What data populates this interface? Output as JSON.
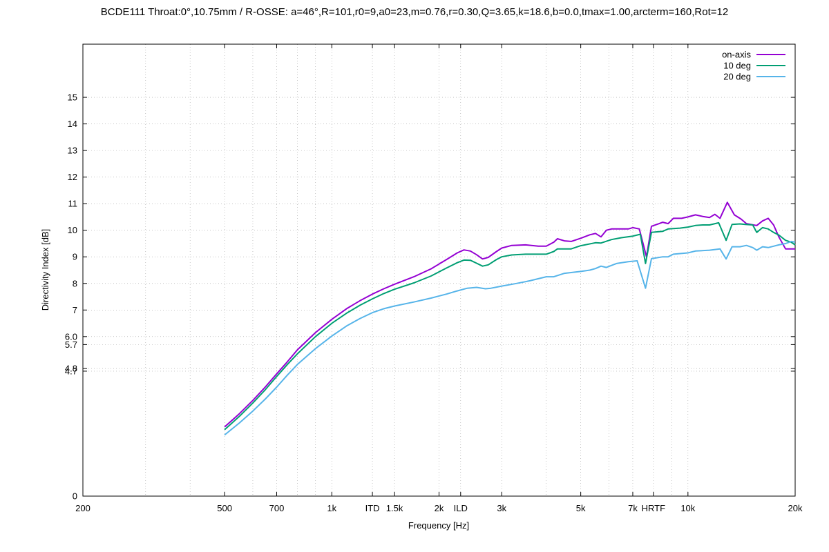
{
  "chart_data": {
    "type": "line",
    "title": "BCDE111 Throat:0°,10.75mm / R-OSSE: a=46°,R=101,r0=9,a0=23,m=0.76,r=0.30,Q=3.65,k=18.6,b=0.0,tmax=1.00,arcterm=160,Rot=12",
    "xlabel": "Frequency [Hz]",
    "ylabel": "Directivity Index [dB]",
    "xscale": "log",
    "xlim": [
      200,
      20000
    ],
    "ylim": [
      0,
      17
    ],
    "grid": true,
    "legend_position": "top-right",
    "x_ticks": [
      {
        "value": 200,
        "label": "200"
      },
      {
        "value": 500,
        "label": "500"
      },
      {
        "value": 700,
        "label": "700"
      },
      {
        "value": 1000,
        "label": "1k"
      },
      {
        "value": 1300,
        "label": "ITD"
      },
      {
        "value": 1500,
        "label": "1.5k"
      },
      {
        "value": 2000,
        "label": "2k"
      },
      {
        "value": 2300,
        "label": "ILD"
      },
      {
        "value": 3000,
        "label": "3k"
      },
      {
        "value": 5000,
        "label": "5k"
      },
      {
        "value": 7000,
        "label": "7k"
      },
      {
        "value": 8000,
        "label": "HRTF"
      },
      {
        "value": 10000,
        "label": "10k"
      },
      {
        "value": 20000,
        "label": "20k"
      }
    ],
    "x_minor_grid": [
      300,
      400,
      600,
      800,
      900,
      4000,
      6000,
      9000
    ],
    "y_ticks": [
      {
        "value": 0,
        "label": "0"
      },
      {
        "value": 4.7,
        "label": "4.7"
      },
      {
        "value": 4.8,
        "label": "4.8"
      },
      {
        "value": 5.7,
        "label": "5.7"
      },
      {
        "value": 6.0,
        "label": "6.0"
      },
      {
        "value": 7,
        "label": "7"
      },
      {
        "value": 8,
        "label": "8"
      },
      {
        "value": 9,
        "label": "9"
      },
      {
        "value": 10,
        "label": "10"
      },
      {
        "value": 11,
        "label": "11"
      },
      {
        "value": 12,
        "label": "12"
      },
      {
        "value": 13,
        "label": "13"
      },
      {
        "value": 14,
        "label": "14"
      },
      {
        "value": 15,
        "label": "15"
      }
    ],
    "series": [
      {
        "name": "on-axis",
        "color": "#9400d3",
        "points": [
          [
            500,
            2.6
          ],
          [
            550,
            3.1
          ],
          [
            600,
            3.6
          ],
          [
            650,
            4.1
          ],
          [
            700,
            4.6
          ],
          [
            750,
            5.05
          ],
          [
            800,
            5.5
          ],
          [
            900,
            6.15
          ],
          [
            1000,
            6.65
          ],
          [
            1100,
            7.05
          ],
          [
            1200,
            7.35
          ],
          [
            1300,
            7.6
          ],
          [
            1400,
            7.8
          ],
          [
            1500,
            7.97
          ],
          [
            1700,
            8.25
          ],
          [
            1900,
            8.55
          ],
          [
            2100,
            8.9
          ],
          [
            2250,
            9.15
          ],
          [
            2350,
            9.26
          ],
          [
            2450,
            9.22
          ],
          [
            2550,
            9.08
          ],
          [
            2650,
            8.92
          ],
          [
            2750,
            8.98
          ],
          [
            2900,
            9.2
          ],
          [
            3000,
            9.33
          ],
          [
            3200,
            9.43
          ],
          [
            3500,
            9.45
          ],
          [
            3800,
            9.4
          ],
          [
            4000,
            9.4
          ],
          [
            4200,
            9.55
          ],
          [
            4300,
            9.68
          ],
          [
            4500,
            9.6
          ],
          [
            4700,
            9.58
          ],
          [
            5000,
            9.7
          ],
          [
            5300,
            9.83
          ],
          [
            5500,
            9.88
          ],
          [
            5700,
            9.75
          ],
          [
            5900,
            10.0
          ],
          [
            6100,
            10.05
          ],
          [
            6500,
            10.05
          ],
          [
            6800,
            10.05
          ],
          [
            7000,
            10.1
          ],
          [
            7300,
            10.05
          ],
          [
            7650,
            9.0
          ],
          [
            7900,
            10.15
          ],
          [
            8300,
            10.25
          ],
          [
            8500,
            10.3
          ],
          [
            8800,
            10.25
          ],
          [
            9100,
            10.45
          ],
          [
            9600,
            10.45
          ],
          [
            10000,
            10.5
          ],
          [
            10500,
            10.58
          ],
          [
            11000,
            10.52
          ],
          [
            11500,
            10.48
          ],
          [
            11900,
            10.6
          ],
          [
            12300,
            10.45
          ],
          [
            12900,
            11.05
          ],
          [
            13500,
            10.58
          ],
          [
            14100,
            10.42
          ],
          [
            14600,
            10.25
          ],
          [
            15000,
            10.22
          ],
          [
            15600,
            10.18
          ],
          [
            16200,
            10.35
          ],
          [
            16800,
            10.45
          ],
          [
            17400,
            10.2
          ],
          [
            18000,
            9.75
          ],
          [
            18800,
            9.3
          ],
          [
            19500,
            9.3
          ],
          [
            20000,
            9.3
          ]
        ]
      },
      {
        "name": "10 deg",
        "color": "#009e73",
        "points": [
          [
            500,
            2.5
          ],
          [
            550,
            3.0
          ],
          [
            600,
            3.5
          ],
          [
            650,
            4.0
          ],
          [
            700,
            4.5
          ],
          [
            750,
            4.95
          ],
          [
            800,
            5.35
          ],
          [
            900,
            6.0
          ],
          [
            1000,
            6.5
          ],
          [
            1100,
            6.88
          ],
          [
            1200,
            7.18
          ],
          [
            1300,
            7.42
          ],
          [
            1400,
            7.62
          ],
          [
            1500,
            7.78
          ],
          [
            1700,
            8.02
          ],
          [
            1900,
            8.28
          ],
          [
            2100,
            8.58
          ],
          [
            2250,
            8.78
          ],
          [
            2350,
            8.88
          ],
          [
            2450,
            8.87
          ],
          [
            2550,
            8.76
          ],
          [
            2650,
            8.65
          ],
          [
            2750,
            8.7
          ],
          [
            2900,
            8.9
          ],
          [
            3000,
            9.0
          ],
          [
            3200,
            9.07
          ],
          [
            3500,
            9.1
          ],
          [
            4000,
            9.1
          ],
          [
            4200,
            9.2
          ],
          [
            4300,
            9.3
          ],
          [
            4700,
            9.3
          ],
          [
            5000,
            9.42
          ],
          [
            5500,
            9.53
          ],
          [
            5700,
            9.52
          ],
          [
            6100,
            9.65
          ],
          [
            6500,
            9.72
          ],
          [
            7000,
            9.78
          ],
          [
            7350,
            9.85
          ],
          [
            7600,
            8.75
          ],
          [
            7900,
            9.92
          ],
          [
            8500,
            9.96
          ],
          [
            8800,
            10.05
          ],
          [
            9500,
            10.08
          ],
          [
            10000,
            10.12
          ],
          [
            10500,
            10.18
          ],
          [
            11000,
            10.2
          ],
          [
            11500,
            10.2
          ],
          [
            12200,
            10.28
          ],
          [
            12800,
            9.62
          ],
          [
            13300,
            10.22
          ],
          [
            14000,
            10.24
          ],
          [
            14500,
            10.22
          ],
          [
            15200,
            10.2
          ],
          [
            15600,
            9.92
          ],
          [
            16200,
            10.1
          ],
          [
            16800,
            10.05
          ],
          [
            17400,
            9.92
          ],
          [
            18000,
            9.82
          ],
          [
            18800,
            9.62
          ],
          [
            19500,
            9.55
          ],
          [
            20000,
            9.45
          ]
        ]
      },
      {
        "name": "20 deg",
        "color": "#56b4e9",
        "points": [
          [
            500,
            2.3
          ],
          [
            550,
            2.75
          ],
          [
            600,
            3.2
          ],
          [
            650,
            3.65
          ],
          [
            700,
            4.1
          ],
          [
            750,
            4.55
          ],
          [
            800,
            4.95
          ],
          [
            900,
            5.55
          ],
          [
            1000,
            6.02
          ],
          [
            1100,
            6.4
          ],
          [
            1200,
            6.68
          ],
          [
            1300,
            6.9
          ],
          [
            1400,
            7.05
          ],
          [
            1500,
            7.15
          ],
          [
            1700,
            7.3
          ],
          [
            1900,
            7.45
          ],
          [
            2100,
            7.6
          ],
          [
            2250,
            7.72
          ],
          [
            2400,
            7.82
          ],
          [
            2550,
            7.85
          ],
          [
            2700,
            7.8
          ],
          [
            2800,
            7.82
          ],
          [
            3000,
            7.9
          ],
          [
            3300,
            8.0
          ],
          [
            3600,
            8.1
          ],
          [
            4000,
            8.25
          ],
          [
            4200,
            8.25
          ],
          [
            4500,
            8.38
          ],
          [
            5000,
            8.45
          ],
          [
            5300,
            8.5
          ],
          [
            5500,
            8.56
          ],
          [
            5700,
            8.65
          ],
          [
            5900,
            8.6
          ],
          [
            6300,
            8.75
          ],
          [
            6800,
            8.82
          ],
          [
            7200,
            8.85
          ],
          [
            7600,
            7.82
          ],
          [
            7900,
            8.93
          ],
          [
            8500,
            9.0
          ],
          [
            8800,
            9.0
          ],
          [
            9100,
            9.1
          ],
          [
            10000,
            9.15
          ],
          [
            10500,
            9.22
          ],
          [
            11500,
            9.25
          ],
          [
            12300,
            9.3
          ],
          [
            12800,
            8.92
          ],
          [
            13300,
            9.38
          ],
          [
            14000,
            9.38
          ],
          [
            14600,
            9.43
          ],
          [
            15200,
            9.35
          ],
          [
            15600,
            9.25
          ],
          [
            16200,
            9.38
          ],
          [
            16800,
            9.35
          ],
          [
            17400,
            9.4
          ],
          [
            18000,
            9.45
          ],
          [
            18800,
            9.5
          ],
          [
            19500,
            9.58
          ],
          [
            20000,
            9.55
          ]
        ]
      }
    ]
  }
}
